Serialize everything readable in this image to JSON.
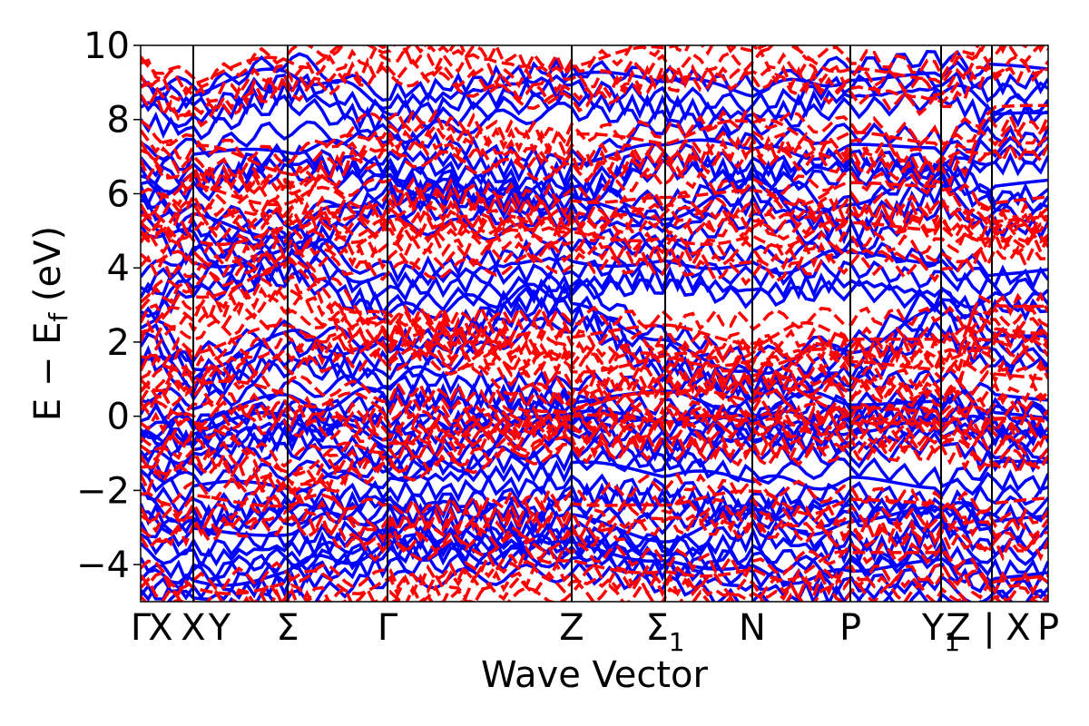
{
  "chart_data": {
    "type": "line",
    "xlabel": "Wave Vector",
    "ylabel": "E − E_f (eV)",
    "ylabel_main": "E − E",
    "ylabel_sub": "f",
    "ylabel_unit": " (eV)",
    "ylim": [
      -5,
      10
    ],
    "yticks": [
      -4,
      -2,
      0,
      2,
      4,
      6,
      8,
      10
    ],
    "ytick_labels": [
      "−4",
      "−2",
      "0",
      "2",
      "4",
      "6",
      "8",
      "10"
    ],
    "xlim": [
      0,
      1
    ],
    "kpoints": [
      {
        "label": "Γ",
        "x": 0.0
      },
      {
        "label": "X",
        "x": 0.022
      },
      {
        "label": "X",
        "x": 0.058
      },
      {
        "label": "Y",
        "x": 0.087
      },
      {
        "label": "Σ",
        "x": 0.162
      },
      {
        "label": "Γ",
        "x": 0.272
      },
      {
        "label": "Z",
        "x": 0.475
      },
      {
        "label": "Σ",
        "subscript": "1",
        "x": 0.578
      },
      {
        "label": "N",
        "x": 0.674
      },
      {
        "label": "P",
        "x": 0.782
      },
      {
        "label": "Y",
        "subscript": "1",
        "x": 0.882
      },
      {
        "label": "Z",
        "x": 0.901
      },
      {
        "label": "|",
        "x": 0.935
      },
      {
        "label": "X",
        "x": 0.967
      },
      {
        "label": "P",
        "x": 1.0
      }
    ],
    "segment_boundaries": [
      0.0,
      0.058,
      0.162,
      0.272,
      0.475,
      0.578,
      0.674,
      0.782,
      0.882,
      0.938,
      1.0
    ],
    "series": [
      {
        "style": "solid",
        "color": "#0000ff",
        "bands_sample": [
          [
            -4.9,
            -4.7,
            -4.3,
            -3.8,
            -3.6,
            -3.9,
            -4.4,
            -4.6,
            -4.3,
            -4.7
          ],
          [
            -3.4,
            -3.6,
            -3.3,
            -3.0,
            -3.2,
            -3.5,
            -3.1,
            -3.4,
            -3.0,
            -3.5
          ],
          [
            -2.0,
            -2.4,
            -2.1,
            -2.0,
            -1.8,
            -1.9,
            -2.2,
            -2.0,
            -2.3,
            -2.1
          ],
          [
            -0.9,
            -0.7,
            -0.3,
            -0.9,
            -0.2,
            -0.6,
            -0.3,
            -0.5,
            -0.1,
            -0.6
          ],
          [
            0.0,
            -0.2,
            0.1,
            0.3,
            0.3,
            0.2,
            0.0,
            0.3,
            0.4,
            0.0
          ],
          [
            2.1,
            1.2,
            1.8,
            1.5,
            3.0,
            1.7,
            1.1,
            1.5,
            2.7,
            1.9
          ],
          [
            3.2,
            3.8,
            4.2,
            3.3,
            3.9,
            4.0,
            3.7,
            3.9,
            3.6,
            3.4
          ],
          [
            5.6,
            5.0,
            4.8,
            5.8,
            5.5,
            5.3,
            5.9,
            5.2,
            6.2,
            5.7
          ],
          [
            6.5,
            6.6,
            7.1,
            6.8,
            6.3,
            7.2,
            6.8,
            7.0,
            6.9,
            7.3
          ],
          [
            8.5,
            8.3,
            9.0,
            8.2,
            8.8,
            8.6,
            8.4,
            8.9,
            9.1,
            8.7
          ]
        ]
      },
      {
        "style": "dashed",
        "color": "#ff0000",
        "bands_sample": [
          [
            -4.6,
            -5.0,
            -4.7,
            -4.9,
            -4.2,
            -4.3,
            -4.6,
            -4.2,
            -4.2,
            -4.8
          ],
          [
            -2.9,
            -2.6,
            -2.4,
            -3.1,
            -2.8,
            -2.4,
            -2.5,
            -2.7,
            -2.8,
            -3.0
          ],
          [
            -1.3,
            -0.8,
            -1.6,
            -1.0,
            -0.5,
            -0.4,
            -0.6,
            -0.5,
            -0.5,
            -0.8
          ],
          [
            0.4,
            0.6,
            0.3,
            0.1,
            -0.1,
            0.2,
            0.3,
            0.2,
            0.1,
            0.4
          ],
          [
            1.2,
            1.7,
            2.0,
            2.1,
            2.1,
            2.0,
            2.0,
            2.1,
            2.1,
            1.8
          ],
          [
            2.8,
            3.1,
            3.6,
            2.2,
            1.1,
            1.2,
            1.3,
            1.2,
            1.0,
            2.7
          ],
          [
            4.7,
            4.4,
            4.8,
            4.5,
            4.7,
            4.6,
            4.4,
            4.7,
            4.5,
            4.9
          ],
          [
            5.3,
            5.8,
            5.7,
            5.6,
            5.4,
            5.9,
            5.6,
            5.8,
            5.7,
            5.2
          ],
          [
            7.2,
            6.8,
            6.5,
            7.5,
            7.1,
            7.2,
            7.5,
            7.3,
            7.0,
            7.6
          ],
          [
            9.1,
            8.6,
            9.3,
            9.7,
            9.0,
            9.5,
            9.6,
            9.2,
            8.9,
            9.8
          ]
        ]
      }
    ],
    "grid": false,
    "legend": "none"
  }
}
